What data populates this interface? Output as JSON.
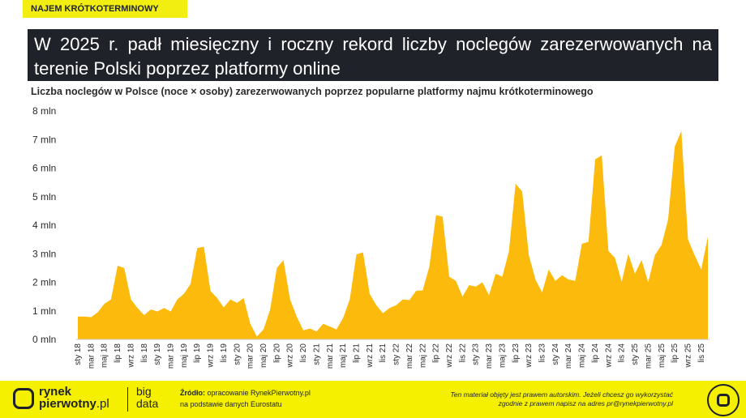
{
  "tag": "NAJEM KRÓTKOTERMINOWY",
  "title": "W 2025 r. padł miesięczny i roczny rekord liczby noclegów zarezerwowanych na terenie Polski poprzez platformy online",
  "footer": {
    "logo_line1": "rynek",
    "logo_line2": "pierwotny",
    "logo_suffix": ".pl",
    "bigdata_line1": "big",
    "bigdata_line2": "data",
    "source_label": "Źródło:",
    "source_line1": "opracowanie RynekPierwotny.pl",
    "source_line2": "na podstawie danych Eurostatu",
    "copyright_line1": "Ten materiał objęty jest prawem autorskim. Jeżeli chcesz go wykorzystać",
    "copyright_line2": "zgodnie z prawem napisz na adres pr@rynekpierwotny.pl",
    "corner_icon": "rynek-pierwotny-logo-icon"
  },
  "colors": {
    "area": "#fcbb0c",
    "title_bg": "#1f2228",
    "footer_bg": "#f4f000"
  },
  "chart_data": {
    "type": "area",
    "title": "Liczba noclegów w Polsce (noce × osoby) zarezerwowanych poprzez popularne platformy najmu krótkoterminowego",
    "xlabel": "",
    "ylabel": "",
    "ylim": [
      0,
      8
    ],
    "yticks": [
      0,
      1,
      2,
      3,
      4,
      5,
      6,
      7,
      8
    ],
    "ytick_labels": [
      "0 mln",
      "1 mln",
      "2 mln",
      "3 mln",
      "4 mln",
      "5 mln",
      "6 mln",
      "7 mln",
      "8 mln"
    ],
    "unit": "mln",
    "grid": false,
    "x": [
      "sty 18",
      "lut 18",
      "mar 18",
      "kwi 18",
      "maj 18",
      "cze 18",
      "lip 18",
      "sie 18",
      "wrz 18",
      "paź 18",
      "lis 18",
      "gru 18",
      "sty 19",
      "lut 19",
      "mar 19",
      "kwi 19",
      "maj 19",
      "cze 19",
      "lip 19",
      "sie 19",
      "wrz 19",
      "paź 19",
      "lis 19",
      "gru 19",
      "sty 20",
      "lut 20",
      "mar 20",
      "kwi 20",
      "maj 20",
      "cze 20",
      "lip 20",
      "sie 20",
      "wrz 20",
      "paź 20",
      "lis 20",
      "gru 20",
      "sty 21",
      "lut 21",
      "mar 21",
      "kwi 21",
      "maj 21",
      "cze 21",
      "lip 21",
      "sie 21",
      "wrz 21",
      "paź 21",
      "lis 21",
      "gru 21",
      "sty 22",
      "lut 22",
      "mar 22",
      "kwi 22",
      "maj 22",
      "cze 22",
      "lip 22",
      "sie 22",
      "wrz 22",
      "paź 22",
      "lis 22",
      "gru 22",
      "sty 23",
      "lut 23",
      "mar 23",
      "kwi 23",
      "maj 23",
      "cze 23",
      "lip 23",
      "sie 23",
      "wrz 23",
      "paź 23",
      "lis 23",
      "gru 23",
      "sty 24",
      "lut 24",
      "mar 24",
      "kwi 24",
      "maj 24",
      "cze 24",
      "lip 24",
      "sie 24",
      "wrz 24",
      "paź 24",
      "lis 24",
      "gru 24",
      "sty 25",
      "lut 25",
      "mar 25",
      "kwi 25",
      "maj 25",
      "cze 25",
      "lip 25",
      "sie 25",
      "wrz 25",
      "paź 25",
      "lis 25",
      "gru 25"
    ],
    "tick_labels": [
      "sty 18",
      "mar 18",
      "maj 18",
      "lip 18",
      "wrz 18",
      "lis 18",
      "sty 19",
      "mar 19",
      "maj 19",
      "lip 19",
      "wrz 19",
      "lis 19",
      "sty 20",
      "mar 20",
      "maj 20",
      "lip 20",
      "wrz 20",
      "lis 20",
      "sty 21",
      "mar 21",
      "maj 21",
      "lip 21",
      "wrz 21",
      "lis 21",
      "sty 22",
      "mar 22",
      "maj 22",
      "lip 22",
      "wrz 22",
      "lis 22",
      "sty 23",
      "mar 23",
      "maj 23",
      "lip 23",
      "wrz 23",
      "lis 23",
      "sty 24",
      "mar 24",
      "maj 24",
      "lip 24",
      "wrz 24",
      "lis 24",
      "sty 25",
      "mar 25",
      "maj 25",
      "lip 25",
      "wrz 25",
      "lis 25"
    ],
    "series": [
      {
        "values": [
          0.8,
          0.8,
          0.78,
          0.95,
          1.25,
          1.4,
          2.58,
          2.5,
          1.4,
          1.1,
          0.85,
          1.05,
          0.98,
          1.1,
          0.98,
          1.4,
          1.6,
          1.95,
          3.2,
          3.25,
          1.7,
          1.45,
          1.12,
          1.4,
          1.28,
          1.45,
          0.55,
          0.1,
          0.35,
          1.05,
          2.5,
          2.78,
          1.4,
          0.8,
          0.32,
          0.38,
          0.28,
          0.55,
          0.45,
          0.35,
          0.75,
          1.4,
          2.98,
          3.05,
          1.6,
          1.2,
          0.92,
          1.1,
          1.2,
          1.4,
          1.38,
          1.7,
          1.72,
          2.55,
          4.35,
          4.3,
          2.2,
          2.05,
          1.5,
          1.9,
          1.85,
          2.0,
          1.55,
          2.3,
          2.2,
          3.08,
          5.45,
          5.18,
          2.95,
          2.1,
          1.65,
          2.45,
          2.05,
          2.25,
          2.1,
          2.05,
          3.35,
          3.42,
          6.3,
          6.45,
          3.1,
          2.85,
          2.02,
          3.0,
          2.3,
          2.78,
          2.0,
          2.95,
          3.3,
          4.2,
          6.75,
          7.3,
          3.5,
          2.95,
          2.45,
          3.6
        ]
      }
    ]
  }
}
